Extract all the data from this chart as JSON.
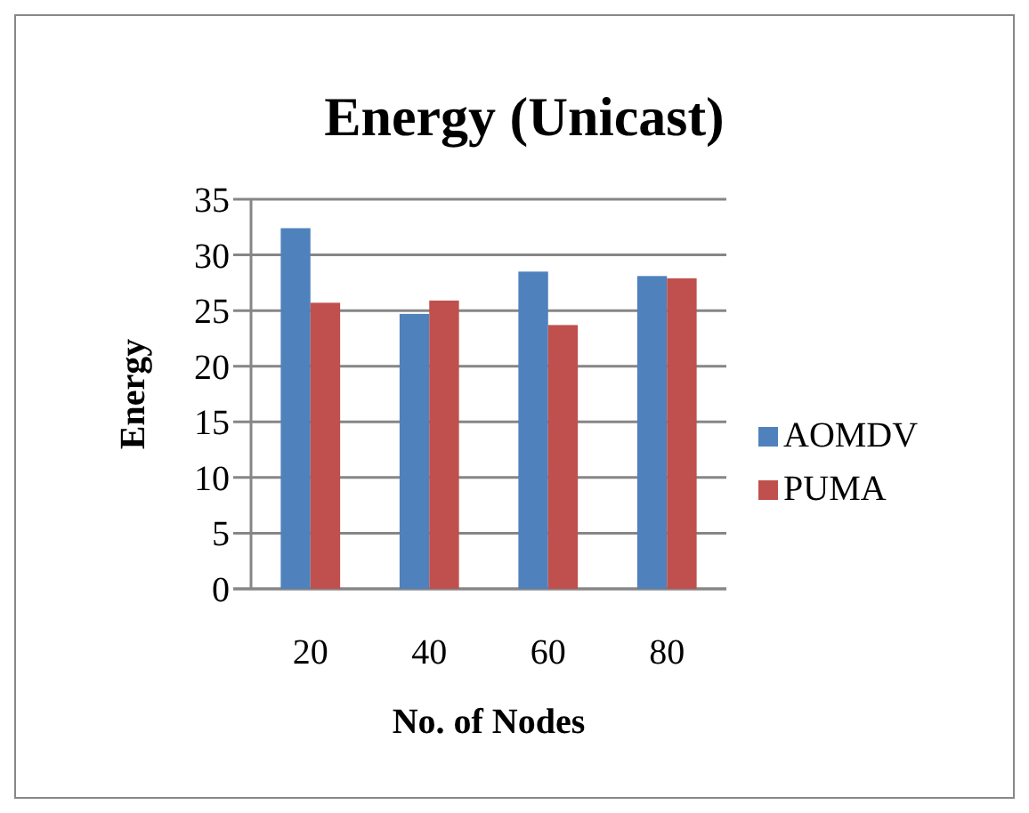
{
  "chart_data": {
    "type": "bar",
    "title": "Energy (Unicast)",
    "xlabel": "No. of Nodes",
    "ylabel": "Energy",
    "categories": [
      "20",
      "40",
      "60",
      "80"
    ],
    "series": [
      {
        "name": "AOMDV",
        "color": "#4f81bd",
        "values": [
          32.4,
          24.7,
          28.5,
          28.1
        ]
      },
      {
        "name": "PUMA",
        "color": "#c0504d",
        "values": [
          25.7,
          25.9,
          23.7,
          27.9
        ]
      }
    ],
    "ylim": [
      0,
      35
    ],
    "yticks": [
      0,
      5,
      10,
      15,
      20,
      25,
      30,
      35
    ],
    "grid": "y",
    "legend": "right"
  }
}
